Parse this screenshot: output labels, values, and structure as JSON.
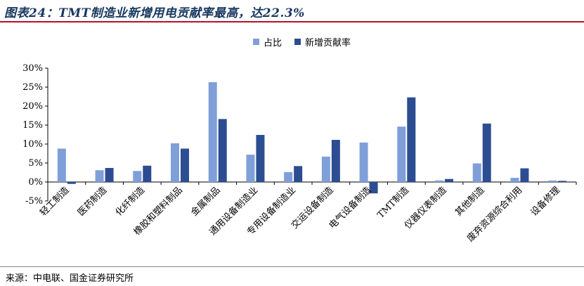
{
  "title": "图表24：TMT制造业新增用电贡献率最高，达22.3%",
  "source": "来源：中电联、国金证券研究所",
  "colors": {
    "share": "#7f9fd8",
    "contribution": "#2c4d91",
    "title": "#17375e",
    "rule": "#b3122a"
  },
  "chart_data": {
    "type": "bar",
    "categories": [
      "轻工制造",
      "医药制造",
      "化纤制造",
      "橡胶和塑料制品",
      "金属制品",
      "通用设备制造业",
      "专用设备制造业",
      "交运设备制造",
      "电气设备制造",
      "TMT制造",
      "仪器仪表制造",
      "其他制造",
      "废弃资源综合利用",
      "设备修理"
    ],
    "series": [
      {
        "name": "占比",
        "values": [
          8.8,
          3.1,
          2.9,
          10.2,
          26.3,
          7.2,
          2.6,
          6.7,
          10.4,
          14.6,
          0.4,
          4.9,
          1.1,
          0.4
        ]
      },
      {
        "name": "新增贡献率",
        "values": [
          -0.5,
          3.7,
          4.3,
          8.8,
          16.6,
          12.4,
          4.2,
          11.1,
          -3.0,
          22.3,
          0.8,
          15.4,
          3.6,
          0.3
        ]
      }
    ],
    "ylim": [
      -5,
      30
    ],
    "yticks": [
      "-5%",
      "0%",
      "5%",
      "10%",
      "15%",
      "20%",
      "25%",
      "30%"
    ],
    "legend_position": "top-center",
    "grid": false
  }
}
